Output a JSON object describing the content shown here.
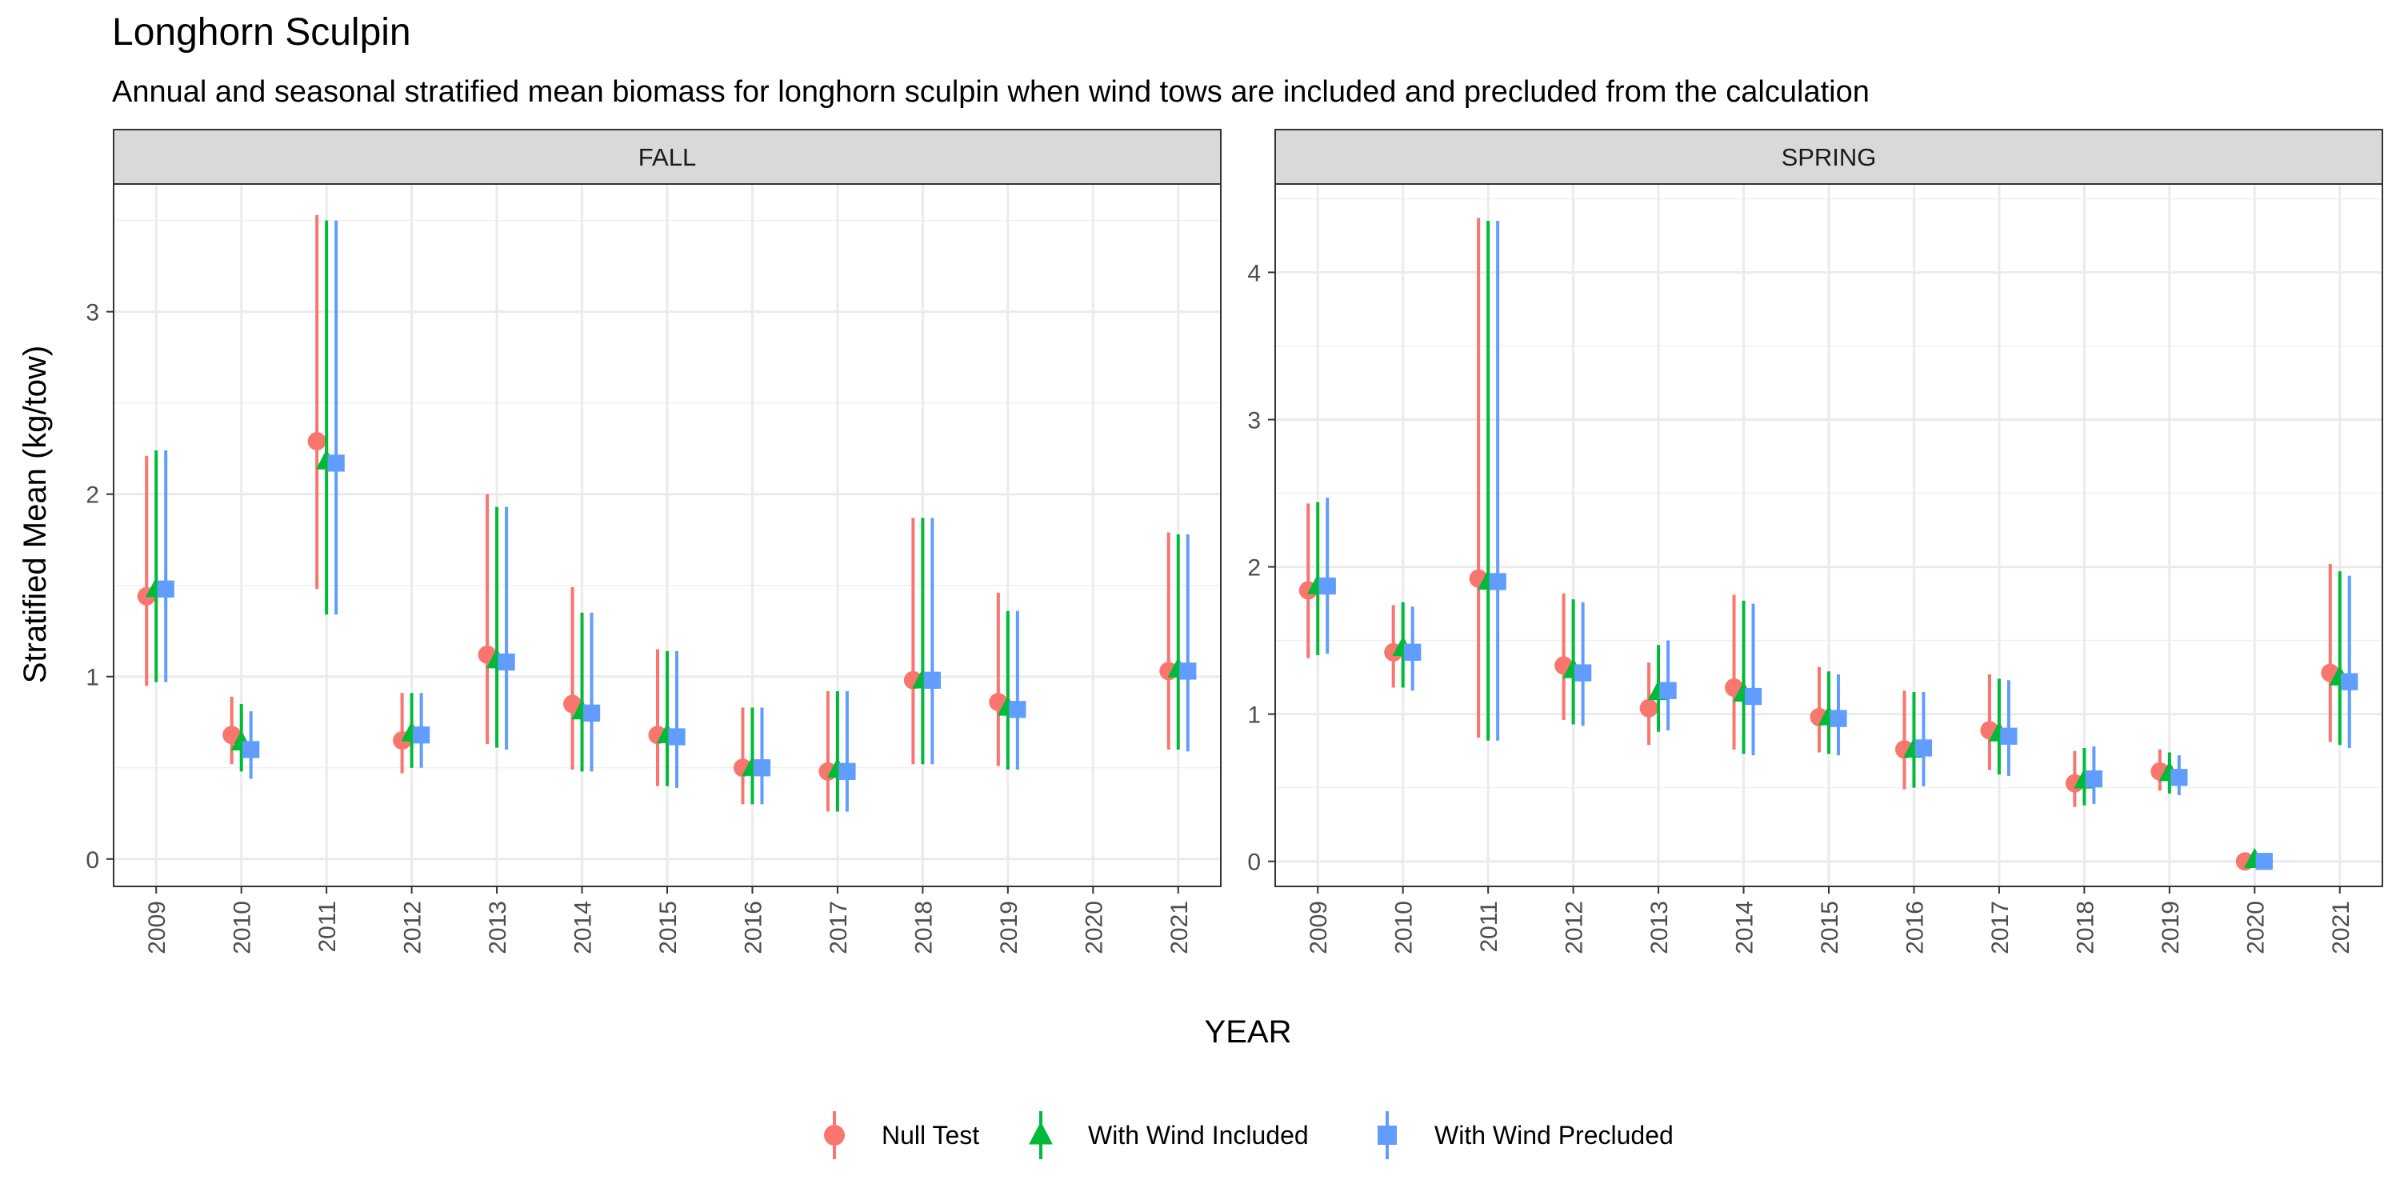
{
  "header": {
    "title": "Longhorn Sculpin",
    "subtitle": "Annual and seasonal stratified mean biomass for longhorn sculpin when wind tows are included and precluded from the calculation"
  },
  "chart_data": {
    "type": "scatter",
    "subtype": "point-range",
    "xlabel": "YEAR",
    "ylabel": "Stratified Mean (kg/tow)",
    "legend_position": "bottom",
    "categories": [
      "2009",
      "2010",
      "2011",
      "2012",
      "2013",
      "2014",
      "2015",
      "2016",
      "2017",
      "2018",
      "2019",
      "2020",
      "2021"
    ],
    "series_styles": [
      {
        "name": "Null Test",
        "color": "#F8766D",
        "shape": "circle"
      },
      {
        "name": "With Wind Included",
        "color": "#00BA38",
        "shape": "triangle"
      },
      {
        "name": "With Wind Precluded",
        "color": "#619CFF",
        "shape": "square"
      }
    ],
    "panels": [
      {
        "strip": "FALL",
        "ylim": [
          -0.15,
          3.7
        ],
        "yticks": [
          0,
          1,
          2,
          3
        ],
        "grid": true,
        "series": [
          {
            "name": "Null Test",
            "values": [
              {
                "x": "2009",
                "y": 1.44,
                "lo": 0.95,
                "hi": 2.21
              },
              {
                "x": "2010",
                "y": 0.68,
                "lo": 0.52,
                "hi": 0.89
              },
              {
                "x": "2011",
                "y": 2.29,
                "lo": 1.48,
                "hi": 3.53
              },
              {
                "x": "2012",
                "y": 0.65,
                "lo": 0.47,
                "hi": 0.91
              },
              {
                "x": "2013",
                "y": 1.12,
                "lo": 0.63,
                "hi": 2.0
              },
              {
                "x": "2014",
                "y": 0.85,
                "lo": 0.49,
                "hi": 1.49
              },
              {
                "x": "2015",
                "y": 0.68,
                "lo": 0.4,
                "hi": 1.15
              },
              {
                "x": "2016",
                "y": 0.5,
                "lo": 0.3,
                "hi": 0.83
              },
              {
                "x": "2017",
                "y": 0.48,
                "lo": 0.26,
                "hi": 0.92
              },
              {
                "x": "2018",
                "y": 0.98,
                "lo": 0.52,
                "hi": 1.87
              },
              {
                "x": "2019",
                "y": 0.86,
                "lo": 0.51,
                "hi": 1.46
              },
              {
                "x": "2021",
                "y": 1.03,
                "lo": 0.6,
                "hi": 1.79
              }
            ]
          },
          {
            "name": "With Wind Included",
            "values": [
              {
                "x": "2009",
                "y": 1.48,
                "lo": 0.97,
                "hi": 2.24
              },
              {
                "x": "2010",
                "y": 0.64,
                "lo": 0.48,
                "hi": 0.85
              },
              {
                "x": "2011",
                "y": 2.18,
                "lo": 1.34,
                "hi": 3.5
              },
              {
                "x": "2012",
                "y": 0.69,
                "lo": 0.5,
                "hi": 0.91
              },
              {
                "x": "2013",
                "y": 1.09,
                "lo": 0.61,
                "hi": 1.93
              },
              {
                "x": "2014",
                "y": 0.81,
                "lo": 0.48,
                "hi": 1.35
              },
              {
                "x": "2015",
                "y": 0.68,
                "lo": 0.4,
                "hi": 1.14
              },
              {
                "x": "2016",
                "y": 0.5,
                "lo": 0.3,
                "hi": 0.83
              },
              {
                "x": "2017",
                "y": 0.49,
                "lo": 0.26,
                "hi": 0.92
              },
              {
                "x": "2018",
                "y": 0.98,
                "lo": 0.52,
                "hi": 1.87
              },
              {
                "x": "2019",
                "y": 0.83,
                "lo": 0.49,
                "hi": 1.36
              },
              {
                "x": "2021",
                "y": 1.04,
                "lo": 0.6,
                "hi": 1.78
              }
            ]
          },
          {
            "name": "With Wind Precluded",
            "values": [
              {
                "x": "2009",
                "y": 1.48,
                "lo": 0.97,
                "hi": 2.24
              },
              {
                "x": "2010",
                "y": 0.6,
                "lo": 0.44,
                "hi": 0.81
              },
              {
                "x": "2011",
                "y": 2.17,
                "lo": 1.34,
                "hi": 3.5
              },
              {
                "x": "2012",
                "y": 0.68,
                "lo": 0.5,
                "hi": 0.91
              },
              {
                "x": "2013",
                "y": 1.08,
                "lo": 0.6,
                "hi": 1.93
              },
              {
                "x": "2014",
                "y": 0.8,
                "lo": 0.48,
                "hi": 1.35
              },
              {
                "x": "2015",
                "y": 0.67,
                "lo": 0.39,
                "hi": 1.14
              },
              {
                "x": "2016",
                "y": 0.5,
                "lo": 0.3,
                "hi": 0.83
              },
              {
                "x": "2017",
                "y": 0.48,
                "lo": 0.26,
                "hi": 0.92
              },
              {
                "x": "2018",
                "y": 0.98,
                "lo": 0.52,
                "hi": 1.87
              },
              {
                "x": "2019",
                "y": 0.82,
                "lo": 0.49,
                "hi": 1.36
              },
              {
                "x": "2021",
                "y": 1.03,
                "lo": 0.59,
                "hi": 1.78
              }
            ]
          }
        ]
      },
      {
        "strip": "SPRING",
        "ylim": [
          -0.17,
          4.6
        ],
        "yticks": [
          0,
          1,
          2,
          3,
          4
        ],
        "grid": true,
        "series": [
          {
            "name": "Null Test",
            "values": [
              {
                "x": "2009",
                "y": 1.84,
                "lo": 1.38,
                "hi": 2.43
              },
              {
                "x": "2010",
                "y": 1.42,
                "lo": 1.18,
                "hi": 1.74
              },
              {
                "x": "2011",
                "y": 1.92,
                "lo": 0.84,
                "hi": 4.37
              },
              {
                "x": "2012",
                "y": 1.33,
                "lo": 0.96,
                "hi": 1.82
              },
              {
                "x": "2013",
                "y": 1.04,
                "lo": 0.79,
                "hi": 1.35
              },
              {
                "x": "2014",
                "y": 1.18,
                "lo": 0.76,
                "hi": 1.81
              },
              {
                "x": "2015",
                "y": 0.98,
                "lo": 0.74,
                "hi": 1.32
              },
              {
                "x": "2016",
                "y": 0.76,
                "lo": 0.49,
                "hi": 1.16
              },
              {
                "x": "2017",
                "y": 0.89,
                "lo": 0.62,
                "hi": 1.27
              },
              {
                "x": "2018",
                "y": 0.53,
                "lo": 0.37,
                "hi": 0.75
              },
              {
                "x": "2019",
                "y": 0.61,
                "lo": 0.48,
                "hi": 0.76
              },
              {
                "x": "2020",
                "y": 0.0,
                "lo": 0.0,
                "hi": 0.0
              },
              {
                "x": "2021",
                "y": 1.28,
                "lo": 0.81,
                "hi": 2.02
              }
            ]
          },
          {
            "name": "With Wind Included",
            "values": [
              {
                "x": "2009",
                "y": 1.87,
                "lo": 1.4,
                "hi": 2.44
              },
              {
                "x": "2010",
                "y": 1.45,
                "lo": 1.18,
                "hi": 1.76
              },
              {
                "x": "2011",
                "y": 1.9,
                "lo": 0.82,
                "hi": 4.35
              },
              {
                "x": "2012",
                "y": 1.3,
                "lo": 0.93,
                "hi": 1.78
              },
              {
                "x": "2013",
                "y": 1.15,
                "lo": 0.88,
                "hi": 1.47
              },
              {
                "x": "2014",
                "y": 1.14,
                "lo": 0.73,
                "hi": 1.77
              },
              {
                "x": "2015",
                "y": 0.98,
                "lo": 0.73,
                "hi": 1.29
              },
              {
                "x": "2016",
                "y": 0.76,
                "lo": 0.5,
                "hi": 1.15
              },
              {
                "x": "2017",
                "y": 0.87,
                "lo": 0.59,
                "hi": 1.24
              },
              {
                "x": "2018",
                "y": 0.55,
                "lo": 0.38,
                "hi": 0.77
              },
              {
                "x": "2019",
                "y": 0.6,
                "lo": 0.46,
                "hi": 0.74
              },
              {
                "x": "2020",
                "y": 0.01,
                "lo": 0.0,
                "hi": 0.02
              },
              {
                "x": "2021",
                "y": 1.25,
                "lo": 0.79,
                "hi": 1.97
              }
            ]
          },
          {
            "name": "With Wind Precluded",
            "values": [
              {
                "x": "2009",
                "y": 1.87,
                "lo": 1.41,
                "hi": 2.47
              },
              {
                "x": "2010",
                "y": 1.42,
                "lo": 1.16,
                "hi": 1.73
              },
              {
                "x": "2011",
                "y": 1.9,
                "lo": 0.82,
                "hi": 4.35
              },
              {
                "x": "2012",
                "y": 1.28,
                "lo": 0.92,
                "hi": 1.76
              },
              {
                "x": "2013",
                "y": 1.16,
                "lo": 0.89,
                "hi": 1.5
              },
              {
                "x": "2014",
                "y": 1.12,
                "lo": 0.72,
                "hi": 1.75
              },
              {
                "x": "2015",
                "y": 0.97,
                "lo": 0.72,
                "hi": 1.27
              },
              {
                "x": "2016",
                "y": 0.77,
                "lo": 0.51,
                "hi": 1.15
              },
              {
                "x": "2017",
                "y": 0.85,
                "lo": 0.58,
                "hi": 1.23
              },
              {
                "x": "2018",
                "y": 0.56,
                "lo": 0.39,
                "hi": 0.78
              },
              {
                "x": "2019",
                "y": 0.57,
                "lo": 0.45,
                "hi": 0.72
              },
              {
                "x": "2020",
                "y": 0.0,
                "lo": 0.0,
                "hi": 0.0
              },
              {
                "x": "2021",
                "y": 1.22,
                "lo": 0.77,
                "hi": 1.94
              }
            ]
          }
        ]
      }
    ]
  }
}
